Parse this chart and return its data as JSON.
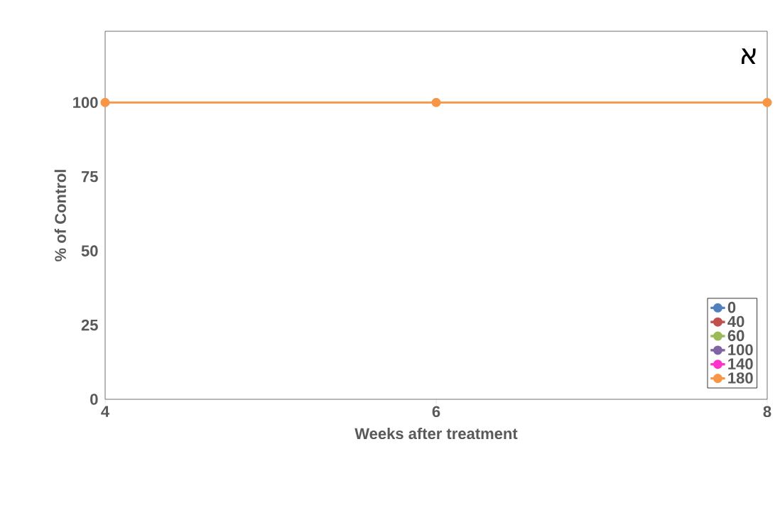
{
  "chart_data": {
    "type": "line",
    "xlabel": "Weeks after treatment",
    "ylabel": "% of Control",
    "x": [
      4,
      6,
      8
    ],
    "xlim": [
      4,
      8
    ],
    "xticks": [
      4,
      6,
      8
    ],
    "ylim": [
      0,
      124
    ],
    "yticks": [
      0,
      25,
      50,
      75,
      100
    ],
    "marker": "circle",
    "line_style": "solid",
    "grid": false,
    "legend": "bottom right",
    "annotations": [
      "א"
    ],
    "series": [
      {
        "name": "0",
        "color": "#4f81bd",
        "values": [
          null,
          null,
          null
        ]
      },
      {
        "name": "40",
        "color": "#c0504d",
        "values": [
          null,
          null,
          null
        ]
      },
      {
        "name": "60",
        "color": "#9bbb59",
        "values": [
          null,
          null,
          null
        ]
      },
      {
        "name": "100",
        "color": "#8064a2",
        "values": [
          null,
          null,
          null
        ]
      },
      {
        "name": "140",
        "color": "#ff33cc",
        "values": [
          null,
          null,
          null
        ]
      },
      {
        "name": "180",
        "color": "#f79646",
        "values": [
          100,
          100,
          100
        ]
      }
    ]
  }
}
